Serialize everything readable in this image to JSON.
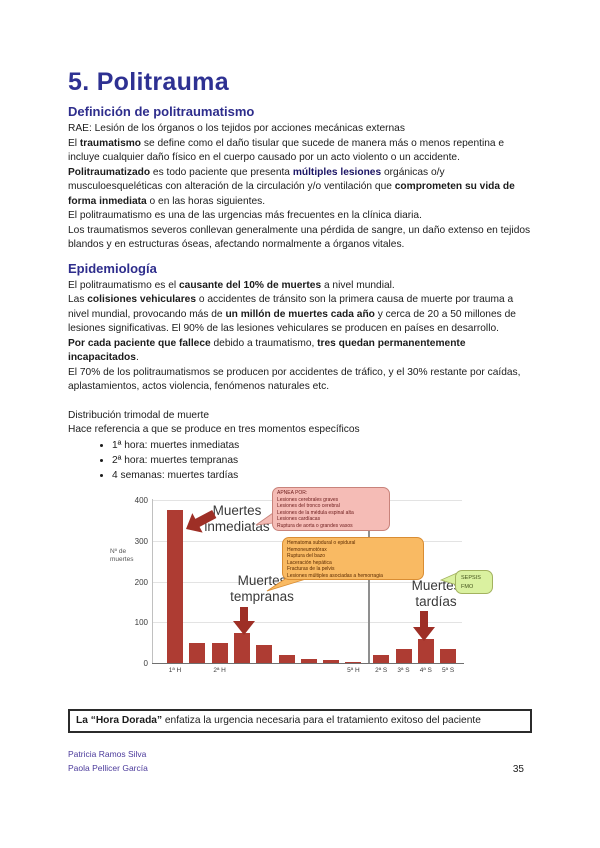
{
  "title": "5. Politrauma",
  "colors": {
    "accent_heading": "#2e3192",
    "keyword_navy": "#1b1464",
    "footer_names": "#4b3a9b",
    "bar": "#ae3c33",
    "arrow": "#9e2f26"
  },
  "doc": {
    "blocks": [
      {
        "type": "heading",
        "text": "Definición de politraumatismo"
      },
      {
        "type": "para",
        "segments": [
          {
            "t": "RAE: Lesión de los órganos o los tejidos por acciones mecánicas externas"
          }
        ]
      },
      {
        "type": "para",
        "segments": [
          {
            "t": "El "
          },
          {
            "t": "traumatismo",
            "b": true
          },
          {
            "t": " se define como el daño tisular que sucede de manera más o menos repentina e incluye cualquier daño físico en el cuerpo causado por un acto violento o un accidente."
          }
        ]
      },
      {
        "type": "para",
        "segments": [
          {
            "t": "Politraumatizado",
            "b": true
          },
          {
            "t": " es todo paciente que presenta "
          },
          {
            "t": "múltiples lesiones",
            "b": true,
            "c": "navy"
          },
          {
            "t": " orgánicas o/y musculoesqueléticas con alteración de la circulación y/o ventilación que "
          },
          {
            "t": "comprometen su vida de forma inmediata",
            "b": true
          },
          {
            "t": " o en las horas siguientes."
          }
        ]
      },
      {
        "type": "para",
        "segments": [
          {
            "t": "El politraumatismo es una de las urgencias más frecuentes en la clínica diaria."
          }
        ]
      },
      {
        "type": "para",
        "segments": [
          {
            "t": "Los traumatismos severos conllevan generalmente una pérdida de sangre, un daño extenso en tejidos blandos y en estructuras óseas, afectando normalmente a órganos vitales."
          }
        ]
      },
      {
        "type": "heading",
        "text": "Epidemiología"
      },
      {
        "type": "para",
        "segments": [
          {
            "t": "El politraumatismo es el "
          },
          {
            "t": "causante del 10% de muertes",
            "b": true
          },
          {
            "t": " a nivel mundial."
          }
        ]
      },
      {
        "type": "para",
        "segments": [
          {
            "t": "Las "
          },
          {
            "t": "colisiones vehiculares",
            "b": true
          },
          {
            "t": " o accidentes de tránsito son la primera causa de muerte por trauma a nivel mundial, provocando más de "
          },
          {
            "t": "un millón de muertes cada año",
            "b": true
          },
          {
            "t": " y cerca de 20 a 50 millones de lesiones significativas. El 90% de las lesiones vehiculares se producen en países en desarrollo."
          }
        ]
      },
      {
        "type": "para",
        "segments": [
          {
            "t": "Por cada paciente que fallece",
            "b": true
          },
          {
            "t": " debido a traumatismo, "
          },
          {
            "t": "tres quedan permanentemente incapacitados",
            "b": true
          },
          {
            "t": "."
          }
        ]
      },
      {
        "type": "para",
        "segments": [
          {
            "t": "El 70% de los politraumatismos se producen por accidentes de tráfico, y el 30% restante por caídas, aplastamientos, actos violencia, fenómenos naturales etc."
          }
        ]
      },
      {
        "type": "gap"
      },
      {
        "type": "para",
        "segments": [
          {
            "t": "Distribución trimodal de muerte"
          }
        ]
      },
      {
        "type": "para",
        "segments": [
          {
            "t": "Hace referencia a que se produce en tres momentos específicos"
          }
        ]
      },
      {
        "type": "bullets",
        "items": [
          "1ª hora: muertes inmediatas",
          "2ª hora: muertes tempranas",
          "4 semanas: muertes tardías"
        ]
      }
    ]
  },
  "chart_data": {
    "type": "bar",
    "title": "Distribución trimodal de muerte",
    "ylabel": "Nº de muertes",
    "xlabel": "",
    "ylim": [
      0,
      400
    ],
    "y_ticks": [
      0,
      100,
      200,
      300,
      400
    ],
    "grid": true,
    "x_tick_labels": [
      "1ª H",
      "",
      "2ª H",
      "",
      "",
      "",
      "",
      "",
      "5ª H",
      "2ª S",
      "3ª S",
      "4ª S",
      "5ª S"
    ],
    "values": [
      375,
      50,
      50,
      75,
      45,
      20,
      10,
      8,
      3,
      20,
      35,
      60,
      35
    ],
    "bar_color": "#ae3c33",
    "annotations": [
      "Muertes inmediatas",
      "Muertes tempranas",
      "Muertes tardías"
    ],
    "callouts": [
      {
        "name": "apnea-causes",
        "lines": [
          "APNEA POR:",
          "Lesiones cerebrales graves",
          "Lesiones del tronco cerebral",
          "Lesiones de la médula espinal alta",
          "Lesiones cardíacas",
          "Ruptura de aorta o grandes vasos"
        ],
        "fill": "#f5bcb6",
        "border": "#c8837b",
        "text": "#6b1a1a"
      },
      {
        "name": "hemorrhage-causes",
        "lines": [
          "Hematoma subdural o epidural",
          "Hemoneumotórax",
          "Ruptura del bazo",
          "Laceración hepática",
          "Fracturas de la pelvis",
          "Lesiones múltiples asociadas a hemorragia"
        ],
        "fill": "#f9ba63",
        "border": "#d98d33",
        "text": "#5c2b00"
      },
      {
        "name": "late-causes",
        "lines": [
          "SEPSIS",
          "FMO"
        ],
        "fill": "#daf1a0",
        "border": "#a3b25f",
        "text": "#44541c"
      }
    ]
  },
  "highlight_box": {
    "segments": [
      {
        "t": "La “Hora Dorada”",
        "b": true
      },
      {
        "t": " enfatiza la urgencia necesaria para el tratamiento exitoso del paciente"
      }
    ]
  },
  "footer": {
    "authors": [
      "Patricia Ramos Silva",
      "Paola Pellicer García"
    ],
    "page_number": "35"
  }
}
